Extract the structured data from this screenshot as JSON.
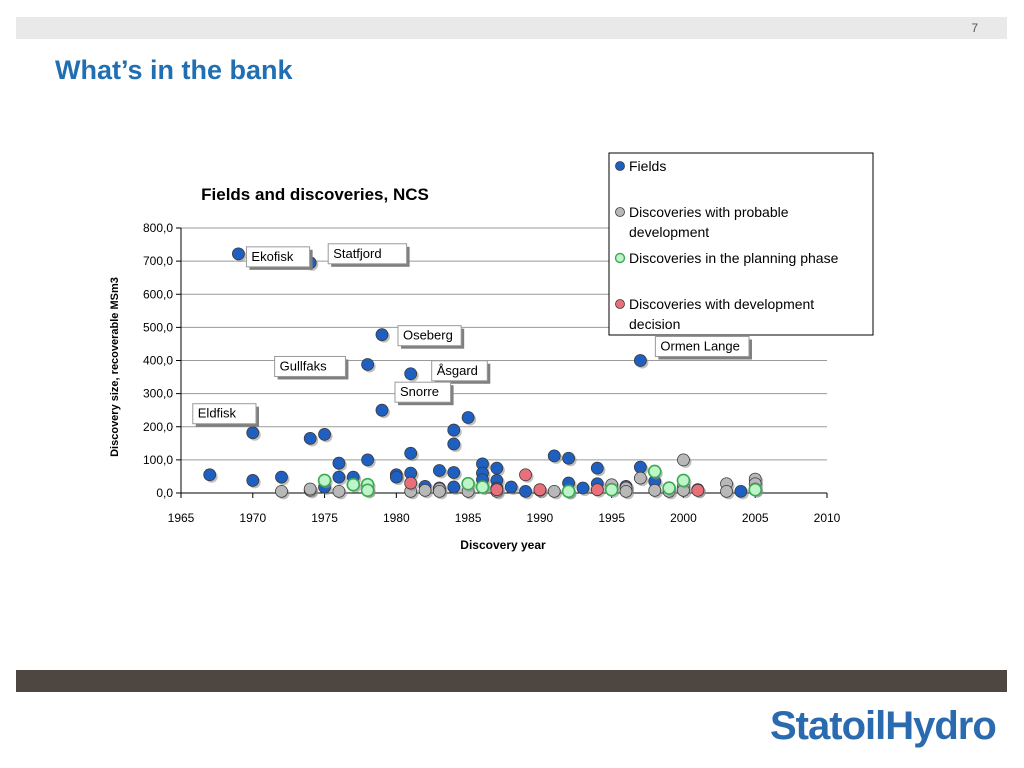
{
  "slide": {
    "number": "7",
    "title": "What’s in the bank",
    "logo_text": "StatoilHydro",
    "logo_colors": {
      "statoil": "#2a6bb0",
      "hydro": "#2a6bb0"
    }
  },
  "chart_data": {
    "type": "scatter",
    "title": "Fields and discoveries, NCS",
    "xlabel": "Discovery year",
    "ylabel": "Discovery size, recoverable MSm3",
    "xlim": [
      1965,
      2010
    ],
    "ylim": [
      0,
      800
    ],
    "x_ticks": [
      1965,
      1970,
      1975,
      1980,
      1985,
      1990,
      1995,
      2000,
      2005,
      2010
    ],
    "y_ticks": [
      0,
      100,
      200,
      300,
      400,
      500,
      600,
      700,
      800
    ],
    "y_tick_labels": [
      "0,0",
      "100,0",
      "200,0",
      "300,0",
      "400,0",
      "500,0",
      "600,0",
      "700,0",
      "800,0"
    ],
    "x_tick_labels": [
      "1965",
      "1970",
      "1975",
      "1980",
      "1985",
      "1990",
      "1995",
      "2000",
      "2005",
      "2010"
    ],
    "grid": "horizontal",
    "legend_position": "top-right",
    "series": [
      {
        "name": "Fields",
        "color": "#1f5fbf",
        "style": "filled",
        "points": [
          [
            1967,
            55
          ],
          [
            1969,
            722
          ],
          [
            1970,
            38
          ],
          [
            1970,
            182
          ],
          [
            1972,
            48
          ],
          [
            1974,
            695
          ],
          [
            1974,
            165
          ],
          [
            1975,
            177
          ],
          [
            1975,
            18
          ],
          [
            1976,
            90
          ],
          [
            1976,
            48
          ],
          [
            1977,
            48
          ],
          [
            1978,
            388
          ],
          [
            1978,
            100
          ],
          [
            1979,
            478
          ],
          [
            1979,
            250
          ],
          [
            1980,
            55
          ],
          [
            1980,
            48
          ],
          [
            1981,
            360
          ],
          [
            1981,
            120
          ],
          [
            1981,
            60
          ],
          [
            1982,
            20
          ],
          [
            1983,
            68
          ],
          [
            1983,
            15
          ],
          [
            1984,
            190
          ],
          [
            1984,
            148
          ],
          [
            1984,
            62
          ],
          [
            1984,
            18
          ],
          [
            1985,
            228
          ],
          [
            1986,
            88
          ],
          [
            1986,
            60
          ],
          [
            1986,
            40
          ],
          [
            1986,
            20
          ],
          [
            1987,
            75
          ],
          [
            1987,
            38
          ],
          [
            1987,
            15
          ],
          [
            1988,
            18
          ],
          [
            1989,
            5
          ],
          [
            1991,
            112
          ],
          [
            1992,
            105
          ],
          [
            1992,
            30
          ],
          [
            1993,
            15
          ],
          [
            1994,
            75
          ],
          [
            1994,
            28
          ],
          [
            1996,
            20
          ],
          [
            1997,
            400
          ],
          [
            1997,
            78
          ],
          [
            1998,
            35
          ],
          [
            2001,
            10
          ],
          [
            2004,
            5
          ]
        ]
      },
      {
        "name": "Discoveries with probable development",
        "color": "#b8b8b8",
        "style": "filled",
        "points": [
          [
            1972,
            5
          ],
          [
            1974,
            8
          ],
          [
            1974,
            12
          ],
          [
            1976,
            5
          ],
          [
            1978,
            10
          ],
          [
            1981,
            5
          ],
          [
            1982,
            8
          ],
          [
            1983,
            12
          ],
          [
            1983,
            5
          ],
          [
            1985,
            5
          ],
          [
            1987,
            5
          ],
          [
            1990,
            8
          ],
          [
            1991,
            5
          ],
          [
            1992,
            5
          ],
          [
            1995,
            25
          ],
          [
            1996,
            15
          ],
          [
            1996,
            5
          ],
          [
            1997,
            45
          ],
          [
            1998,
            8
          ],
          [
            1999,
            5
          ],
          [
            2000,
            100
          ],
          [
            2000,
            20
          ],
          [
            2000,
            8
          ],
          [
            2003,
            28
          ],
          [
            2003,
            5
          ],
          [
            2005,
            42
          ],
          [
            2005,
            28
          ],
          [
            2005,
            12
          ]
        ]
      },
      {
        "name": "Discoveries in the planning phase",
        "color": "#bdf5c9",
        "style": "ring",
        "points": [
          [
            1975,
            38
          ],
          [
            1977,
            25
          ],
          [
            1978,
            25
          ],
          [
            1978,
            8
          ],
          [
            1985,
            28
          ],
          [
            1986,
            18
          ],
          [
            1992,
            5
          ],
          [
            1995,
            10
          ],
          [
            1998,
            65
          ],
          [
            1999,
            15
          ],
          [
            2000,
            38
          ],
          [
            2005,
            10
          ]
        ]
      },
      {
        "name": "Discoveries with development decision",
        "color": "#e8707a",
        "style": "filled",
        "points": [
          [
            1981,
            30
          ],
          [
            1987,
            10
          ],
          [
            1989,
            55
          ],
          [
            1990,
            10
          ],
          [
            1994,
            10
          ],
          [
            2001,
            8
          ]
        ]
      }
    ],
    "annotations": [
      {
        "text": "Ekofisk",
        "x": 1969,
        "y": 722
      },
      {
        "text": "Statfjord",
        "x": 1974,
        "y": 695
      },
      {
        "text": "Oseberg",
        "x": 1979,
        "y": 478
      },
      {
        "text": "Gullfaks",
        "x": 1978,
        "y": 388
      },
      {
        "text": "Åsgard",
        "x": 1981,
        "y": 360
      },
      {
        "text": "Eldfisk",
        "x": 1970,
        "y": 182
      },
      {
        "text": "Snorre",
        "x": 1979,
        "y": 250
      },
      {
        "text": "Ormen Lange",
        "x": 1997,
        "y": 400
      }
    ]
  }
}
